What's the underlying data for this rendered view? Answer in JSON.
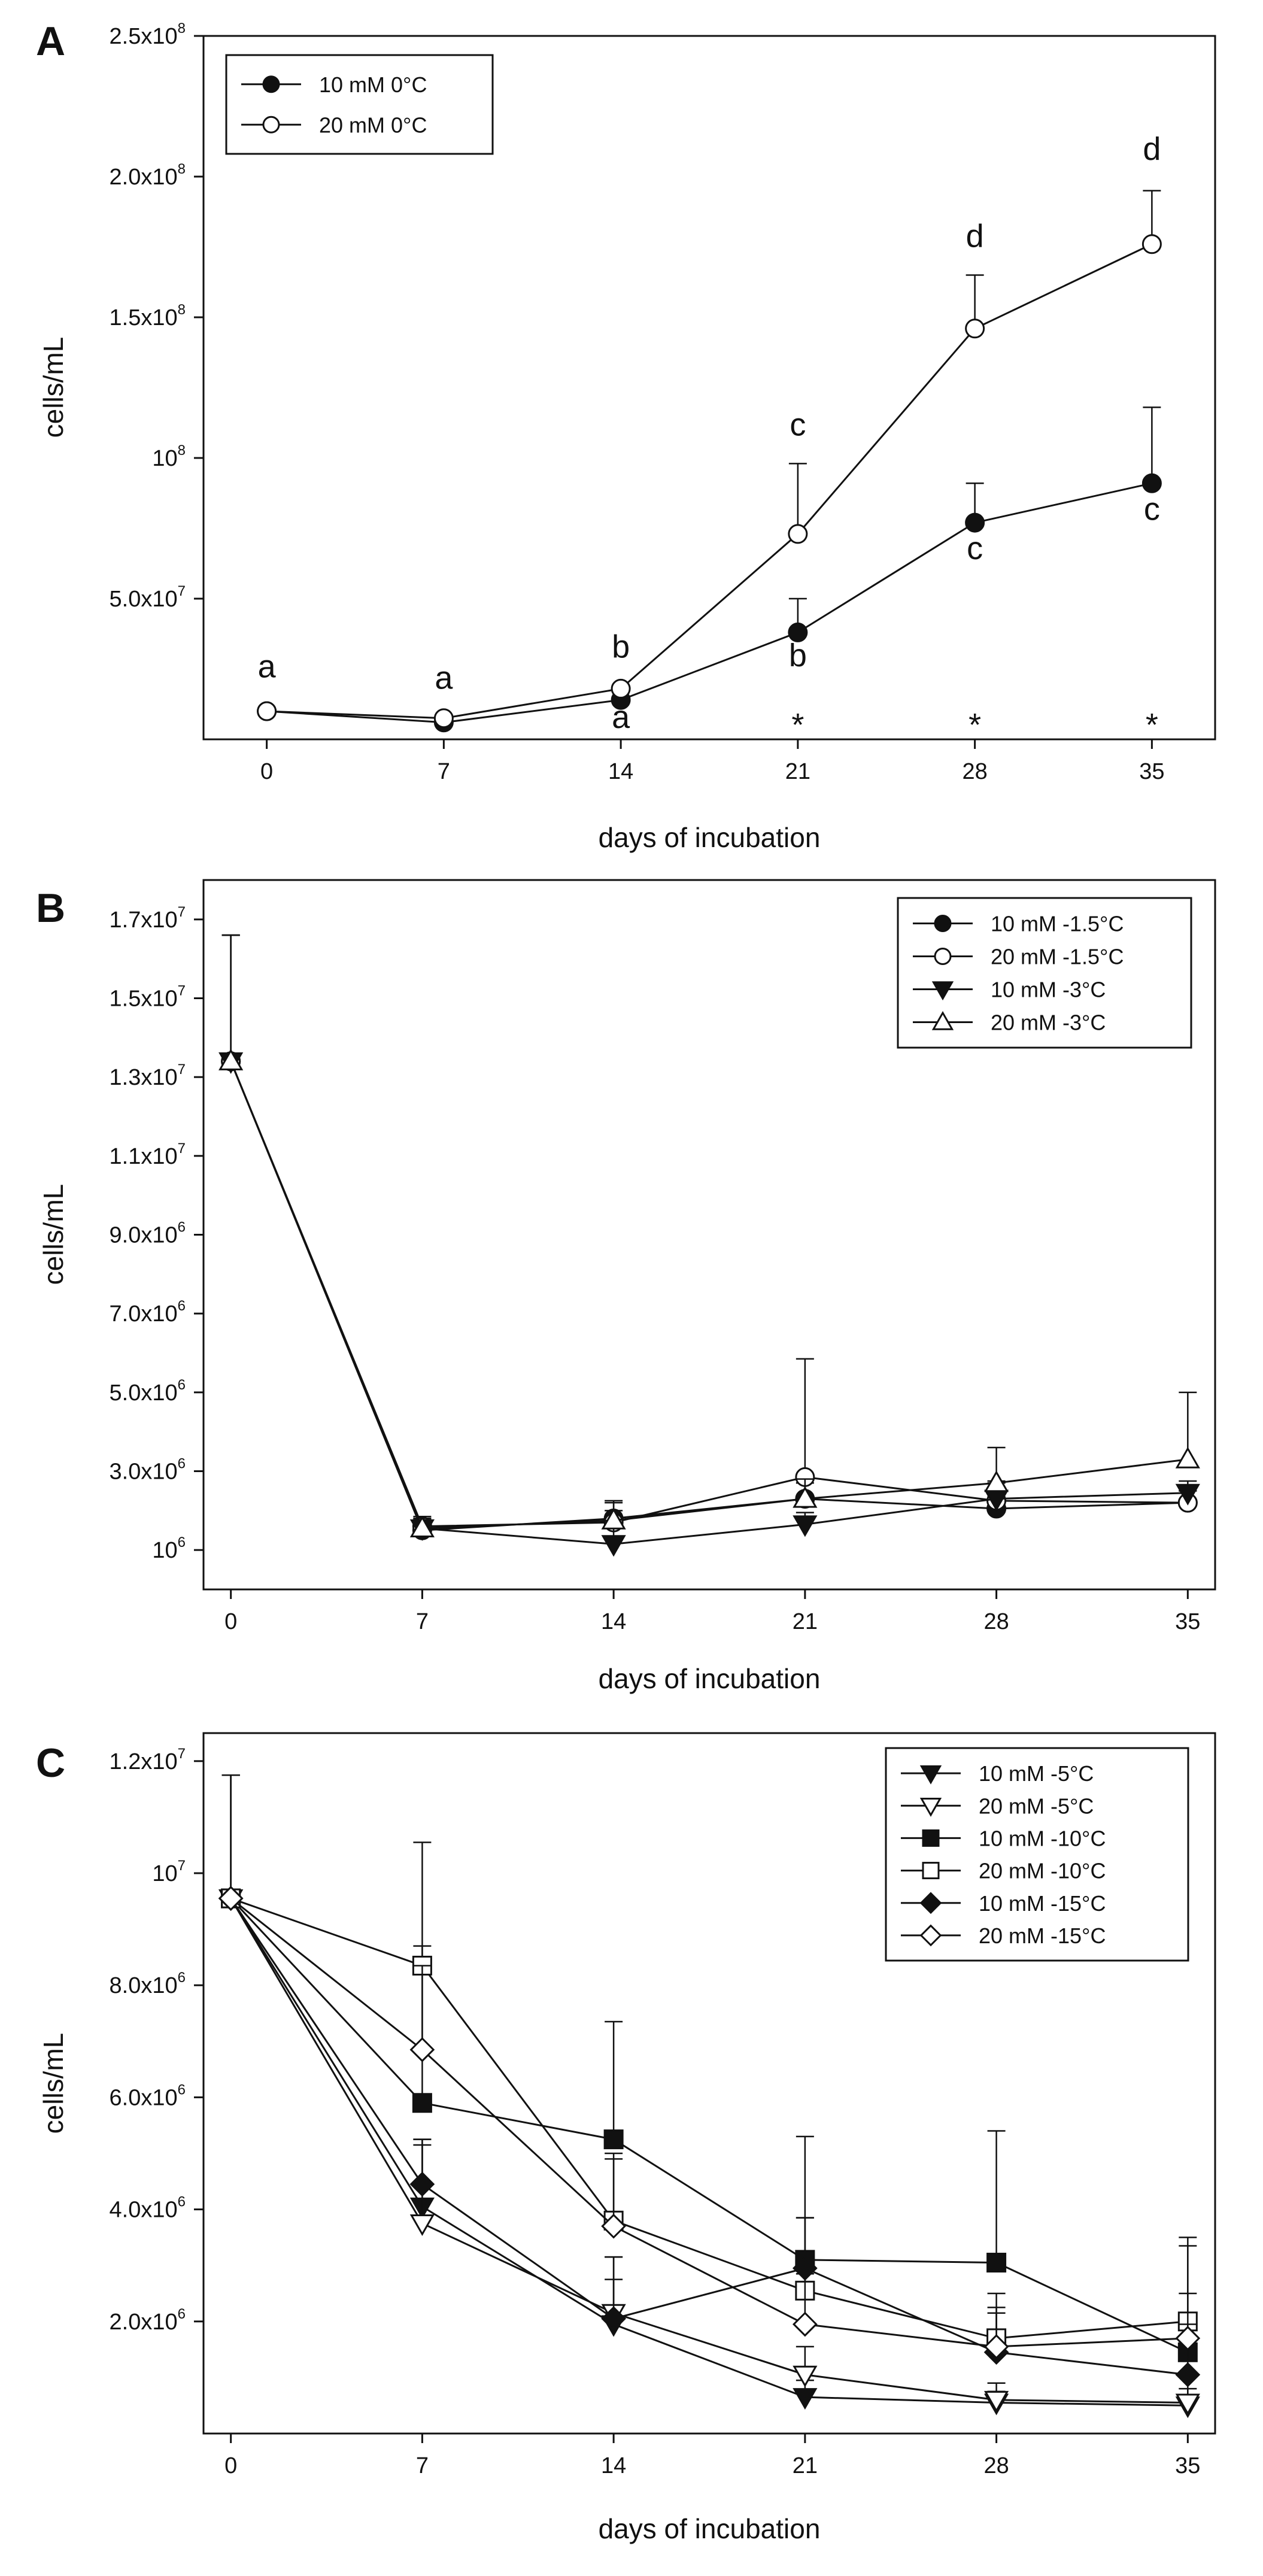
{
  "chart_data": [
    {
      "panel": "A",
      "type": "line",
      "xlabel": "days of incubation",
      "ylabel": "cells/mL",
      "x": [
        0,
        7,
        14,
        21,
        28,
        35
      ],
      "xlim": [
        -2.5,
        37.5
      ],
      "ylim": [
        0,
        250000000
      ],
      "xticks": [
        "0",
        "7",
        "14",
        "21",
        "28",
        "35"
      ],
      "yticks": [
        {
          "value": 50000000,
          "base": "5.0x10",
          "exp": "7"
        },
        {
          "value": 100000000,
          "base": "10",
          "exp": "8"
        },
        {
          "value": 150000000,
          "base": "1.5x10",
          "exp": "8"
        },
        {
          "value": 200000000,
          "base": "2.0x10",
          "exp": "8"
        },
        {
          "value": 250000000,
          "base": "2.5x10",
          "exp": "8"
        }
      ],
      "legend_position": "top-left",
      "series": [
        {
          "name": "10 mM 0°C",
          "marker": "circle-filled",
          "values": [
            10000000,
            6000000,
            14000000,
            38000000,
            77000000,
            91000000
          ],
          "errors": [
            0,
            0,
            0,
            12000000,
            14000000,
            27000000
          ]
        },
        {
          "name": "20 mM 0°C",
          "marker": "circle-open",
          "values": [
            10000000,
            7500000,
            18000000,
            73000000,
            146000000,
            176000000
          ],
          "errors": [
            0,
            0,
            0,
            25000000,
            19000000,
            19000000
          ]
        }
      ],
      "annotations": [
        {
          "x": 0,
          "y": 22000000,
          "text": "a"
        },
        {
          "x": 7,
          "y": 18000000,
          "text": "a"
        },
        {
          "x": 14,
          "y": 29000000,
          "text": "b"
        },
        {
          "x": 14,
          "y": 4000000,
          "text": "a"
        },
        {
          "x": 21,
          "y": 108000000,
          "text": "c"
        },
        {
          "x": 21,
          "y": 26000000,
          "text": "b"
        },
        {
          "x": 21,
          "y": 6000000,
          "text": "*"
        },
        {
          "x": 28,
          "y": 175000000,
          "text": "d"
        },
        {
          "x": 28,
          "y": 64000000,
          "text": "c"
        },
        {
          "x": 28,
          "y": 6000000,
          "text": "*"
        },
        {
          "x": 35,
          "y": 206000000,
          "text": "d"
        },
        {
          "x": 35,
          "y": 78000000,
          "text": "c"
        },
        {
          "x": 35,
          "y": 6000000,
          "text": "*"
        }
      ]
    },
    {
      "panel": "B",
      "type": "line",
      "xlabel": "days of incubation",
      "ylabel": "cells/mL",
      "x": [
        0,
        7,
        14,
        21,
        28,
        35
      ],
      "xlim": [
        -1,
        36
      ],
      "ylim": [
        0,
        18000000
      ],
      "xticks": [
        "0",
        "7",
        "14",
        "21",
        "28",
        "35"
      ],
      "yticks": [
        {
          "value": 1000000,
          "base": "10",
          "exp": "6"
        },
        {
          "value": 3000000,
          "base": "3.0x10",
          "exp": "6"
        },
        {
          "value": 5000000,
          "base": "5.0x10",
          "exp": "6"
        },
        {
          "value": 7000000,
          "base": "7.0x10",
          "exp": "6"
        },
        {
          "value": 9000000,
          "base": "9.0x10",
          "exp": "6"
        },
        {
          "value": 11000000,
          "base": "1.1x10",
          "exp": "7"
        },
        {
          "value": 13000000,
          "base": "1.3x10",
          "exp": "7"
        },
        {
          "value": 15000000,
          "base": "1.5x10",
          "exp": "7"
        },
        {
          "value": 17000000,
          "base": "1.7x10",
          "exp": "7"
        }
      ],
      "legend_position": "top-right",
      "series": [
        {
          "name": "10 mM -1.5°C",
          "marker": "circle-filled",
          "values": [
            13400000,
            1500000,
            1800000,
            2300000,
            2050000,
            2200000
          ],
          "errors": [
            3200000,
            300000,
            400000,
            400000,
            300000,
            300000
          ]
        },
        {
          "name": "20 mM -1.5°C",
          "marker": "circle-open",
          "values": [
            13400000,
            1600000,
            1700000,
            2850000,
            2250000,
            2200000
          ],
          "errors": [
            3200000,
            200000,
            300000,
            3000000,
            500000,
            300000
          ]
        },
        {
          "name": "10 mM -3°C",
          "marker": "triangle-down-filled",
          "values": [
            13400000,
            1550000,
            1150000,
            1650000,
            2300000,
            2450000
          ],
          "errors": [
            3200000,
            250000,
            400000,
            300000,
            400000,
            300000
          ]
        },
        {
          "name": "20 mM -3°C",
          "marker": "triangle-up-open",
          "values": [
            13400000,
            1550000,
            1750000,
            2300000,
            2700000,
            3300000
          ],
          "errors": [
            3200000,
            300000,
            500000,
            500000,
            900000,
            1700000
          ]
        }
      ]
    },
    {
      "panel": "C",
      "type": "line",
      "xlabel": "days of incubation",
      "ylabel": "cells/mL",
      "x": [
        0,
        7,
        14,
        21,
        28,
        35
      ],
      "xlim": [
        -1,
        36
      ],
      "ylim": [
        0,
        12500000
      ],
      "xticks": [
        "0",
        "7",
        "14",
        "21",
        "28",
        "35"
      ],
      "yticks": [
        {
          "value": 2000000,
          "base": "2.0x10",
          "exp": "6"
        },
        {
          "value": 4000000,
          "base": "4.0x10",
          "exp": "6"
        },
        {
          "value": 6000000,
          "base": "6.0x10",
          "exp": "6"
        },
        {
          "value": 8000000,
          "base": "8.0x10",
          "exp": "6"
        },
        {
          "value": 10000000,
          "base": "10",
          "exp": "7"
        },
        {
          "value": 12000000,
          "base": "1.2x10",
          "exp": "7"
        }
      ],
      "legend_position": "top-right",
      "series": [
        {
          "name": "10 mM -5°C",
          "marker": "triangle-down-filled",
          "values": [
            9550000,
            4050000,
            1950000,
            650000,
            550000,
            500000
          ],
          "errors": [
            2200000,
            1200000,
            1200000,
            300000,
            200000,
            300000
          ]
        },
        {
          "name": "20 mM -5°C",
          "marker": "triangle-down-open",
          "values": [
            9550000,
            3750000,
            2150000,
            1050000,
            600000,
            550000
          ],
          "errors": [
            2200000,
            1400000,
            1000000,
            500000,
            300000,
            500000
          ]
        },
        {
          "name": "10 mM -10°C",
          "marker": "square-filled",
          "values": [
            9550000,
            5900000,
            5250000,
            3100000,
            3050000,
            1450000
          ],
          "errors": [
            2200000,
            2800000,
            2100000,
            2200000,
            2350000,
            1900000
          ]
        },
        {
          "name": "20 mM -10°C",
          "marker": "square-open",
          "values": [
            9550000,
            8350000,
            3800000,
            2550000,
            1700000,
            2000000
          ],
          "errors": [
            2200000,
            2200000,
            1200000,
            1300000,
            800000,
            1500000
          ]
        },
        {
          "name": "10 mM -15°C",
          "marker": "diamond-filled",
          "values": [
            9550000,
            4450000,
            2050000,
            2950000,
            1450000,
            1050000
          ],
          "errors": [
            2200000,
            800000,
            700000,
            900000,
            700000,
            900000
          ]
        },
        {
          "name": "20 mM -15°C",
          "marker": "diamond-open",
          "values": [
            9550000,
            6850000,
            3700000,
            1950000,
            1550000,
            1700000
          ],
          "errors": [
            2200000,
            1500000,
            1200000,
            900000,
            700000,
            800000
          ]
        }
      ]
    }
  ]
}
